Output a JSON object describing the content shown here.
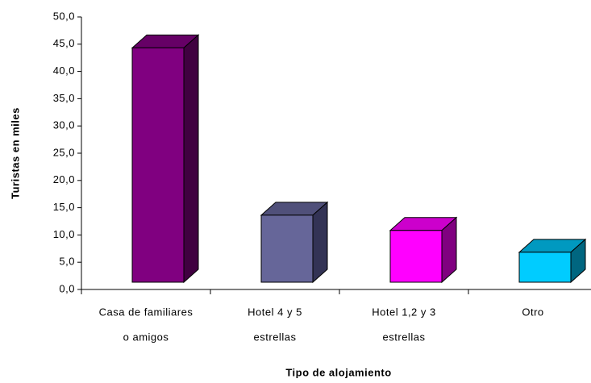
{
  "chart_data": {
    "type": "bar3d",
    "x_label": "Tipo de alojamiento",
    "y_label": "Turistas en miles",
    "categories": [
      [
        "Casa de familiares",
        "o amigos"
      ],
      [
        "Hotel 4 y 5",
        "estrellas"
      ],
      [
        "Hotel 1,2 y 3",
        "estrellas"
      ],
      [
        "Otro"
      ]
    ],
    "values": [
      43.0,
      12.3,
      9.5,
      5.5
    ],
    "colors": [
      {
        "front": "#800080",
        "top": "#660066",
        "side": "#400040"
      },
      {
        "front": "#666699",
        "top": "#50507a",
        "side": "#333355"
      },
      {
        "front": "#ff00ff",
        "top": "#cc00cc",
        "side": "#800080"
      },
      {
        "front": "#00ccff",
        "top": "#0099c0",
        "side": "#006680"
      }
    ],
    "ylim": [
      0,
      50
    ],
    "yticks": [
      {
        "value": 0,
        "label": "0,0"
      },
      {
        "value": 5,
        "label": "5,0"
      },
      {
        "value": 10,
        "label": "10,0"
      },
      {
        "value": 15,
        "label": "15,0"
      },
      {
        "value": 20,
        "label": "20,0"
      },
      {
        "value": 25,
        "label": "25,0"
      },
      {
        "value": 30,
        "label": "30,0"
      },
      {
        "value": 35,
        "label": "35,0"
      },
      {
        "value": 40,
        "label": "40,0"
      },
      {
        "value": 45,
        "label": "45,0"
      },
      {
        "value": 50,
        "label": "50,0"
      }
    ]
  }
}
